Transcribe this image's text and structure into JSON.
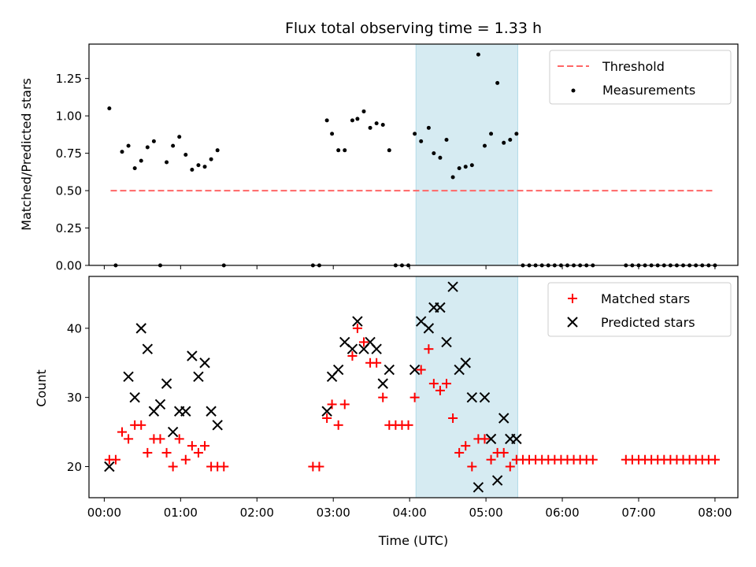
{
  "chart_data": [
    {
      "type": "scatter",
      "title": "Flux total observing time = 1.33 h",
      "xlabel": "",
      "ylabel": "Matched/Predicted stars",
      "xlim": [
        "23:48",
        "08:18"
      ],
      "ylim": [
        0,
        1.48
      ],
      "yticks": [
        "0.00",
        "0.25",
        "0.50",
        "0.75",
        "1.00",
        "1.25"
      ],
      "legend": "top-right",
      "shaded_span": [
        "04:05",
        "05:25"
      ],
      "span_color": "#add8e6",
      "series": [
        {
          "name": "Threshold",
          "style": "dashed-line",
          "color": "#ff6666",
          "x": [
            "00:05",
            "08:00"
          ],
          "y": [
            0.5,
            0.5
          ]
        },
        {
          "name": "Measurements",
          "style": "dots",
          "color": "#000000",
          "x": [
            "00:04",
            "00:09",
            "00:14",
            "00:19",
            "00:24",
            "00:29",
            "00:34",
            "00:39",
            "00:44",
            "00:49",
            "00:54",
            "00:59",
            "01:04",
            "01:09",
            "01:14",
            "01:19",
            "01:24",
            "01:29",
            "01:34",
            "02:44",
            "02:49",
            "02:55",
            "02:59",
            "03:04",
            "03:09",
            "03:15",
            "03:19",
            "03:24",
            "03:29",
            "03:34",
            "03:39",
            "03:44",
            "03:49",
            "03:54",
            "03:59",
            "04:04",
            "04:09",
            "04:15",
            "04:19",
            "04:24",
            "04:29",
            "04:34",
            "04:39",
            "04:44",
            "04:49",
            "04:54",
            "04:59",
            "05:04",
            "05:09",
            "05:14",
            "05:19",
            "05:24",
            "05:29",
            "05:34",
            "05:39",
            "05:44",
            "05:49",
            "05:54",
            "05:59",
            "06:04",
            "06:09",
            "06:14",
            "06:19",
            "06:24",
            "06:50",
            "06:55",
            "07:00",
            "07:05",
            "07:10",
            "07:15",
            "07:20",
            "07:25",
            "07:30",
            "07:35",
            "07:40",
            "07:45",
            "07:50",
            "07:55",
            "08:00"
          ],
          "y": [
            1.05,
            0.0,
            0.76,
            0.8,
            0.65,
            0.7,
            0.79,
            0.83,
            0.0,
            0.69,
            0.8,
            0.86,
            0.74,
            0.64,
            0.67,
            0.66,
            0.71,
            0.77,
            0.0,
            0.0,
            0.0,
            0.97,
            0.88,
            0.77,
            0.77,
            0.97,
            0.98,
            1.03,
            0.92,
            0.95,
            0.94,
            0.77,
            0.0,
            0.0,
            0.0,
            0.88,
            0.83,
            0.92,
            0.75,
            0.72,
            0.84,
            0.59,
            0.65,
            0.66,
            0.67,
            1.41,
            0.8,
            0.88,
            1.22,
            0.82,
            0.84,
            0.88,
            0.0,
            0.0,
            0.0,
            0.0,
            0.0,
            0.0,
            0.0,
            0.0,
            0.0,
            0.0,
            0.0,
            0.0,
            0.0,
            0.0,
            0.0,
            0.0,
            0.0,
            0.0,
            0.0,
            0.0,
            0.0,
            0.0,
            0.0,
            0.0,
            0.0,
            0.0,
            0.0
          ]
        }
      ]
    },
    {
      "type": "scatter",
      "title": "",
      "xlabel": "Time (UTC)",
      "ylabel": "Count",
      "xlim": [
        "23:48",
        "08:18"
      ],
      "ylim": [
        15.5,
        47.5
      ],
      "yticks": [
        "20",
        "30",
        "40"
      ],
      "xticks": [
        "00:00",
        "01:00",
        "02:00",
        "03:00",
        "04:00",
        "05:00",
        "06:00",
        "07:00",
        "08:00"
      ],
      "legend": "top-right",
      "shaded_span": [
        "04:05",
        "05:25"
      ],
      "span_color": "#add8e6",
      "series": [
        {
          "name": "Matched stars",
          "style": "plus",
          "color": "#ff0000",
          "x": [
            "00:04",
            "00:09",
            "00:14",
            "00:19",
            "00:24",
            "00:29",
            "00:34",
            "00:39",
            "00:44",
            "00:49",
            "00:54",
            "00:59",
            "01:04",
            "01:09",
            "01:14",
            "01:19",
            "01:24",
            "01:29",
            "01:34",
            "02:44",
            "02:49",
            "02:55",
            "02:59",
            "03:04",
            "03:09",
            "03:15",
            "03:19",
            "03:24",
            "03:29",
            "03:34",
            "03:39",
            "03:44",
            "03:49",
            "03:54",
            "03:59",
            "04:04",
            "04:09",
            "04:15",
            "04:19",
            "04:24",
            "04:29",
            "04:34",
            "04:39",
            "04:44",
            "04:49",
            "04:54",
            "04:59",
            "05:04",
            "05:09",
            "05:14",
            "05:19",
            "05:24",
            "05:29",
            "05:34",
            "05:39",
            "05:44",
            "05:49",
            "05:54",
            "05:59",
            "06:04",
            "06:09",
            "06:14",
            "06:19",
            "06:24",
            "06:50",
            "06:55",
            "07:00",
            "07:05",
            "07:10",
            "07:15",
            "07:20",
            "07:25",
            "07:30",
            "07:35",
            "07:40",
            "07:45",
            "07:50",
            "07:55",
            "08:00"
          ],
          "y": [
            21,
            21,
            25,
            24,
            26,
            26,
            22,
            24,
            24,
            22,
            20,
            24,
            21,
            23,
            22,
            23,
            20,
            20,
            20,
            20,
            20,
            27,
            29,
            26,
            29,
            36,
            40,
            38,
            35,
            35,
            30,
            26,
            26,
            26,
            26,
            30,
            34,
            37,
            32,
            31,
            32,
            27,
            22,
            23,
            20,
            24,
            24,
            21,
            22,
            22,
            20,
            21,
            21,
            21,
            21,
            21,
            21,
            21,
            21,
            21,
            21,
            21,
            21,
            21,
            21,
            21,
            21,
            21,
            21,
            21,
            21,
            21,
            21,
            21,
            21,
            21,
            21,
            21,
            21
          ]
        },
        {
          "name": "Predicted stars",
          "style": "x",
          "color": "#000000",
          "x": [
            "00:04",
            "00:19",
            "00:24",
            "00:29",
            "00:34",
            "00:39",
            "00:44",
            "00:49",
            "00:54",
            "00:59",
            "01:04",
            "01:09",
            "01:14",
            "01:19",
            "01:24",
            "01:29",
            "02:55",
            "02:59",
            "03:04",
            "03:09",
            "03:15",
            "03:19",
            "03:24",
            "03:29",
            "03:34",
            "03:39",
            "03:44",
            "04:04",
            "04:09",
            "04:15",
            "04:19",
            "04:24",
            "04:29",
            "04:34",
            "04:39",
            "04:44",
            "04:49",
            "04:54",
            "04:59",
            "05:04",
            "05:09",
            "05:14",
            "05:19",
            "05:24"
          ],
          "y": [
            20,
            33,
            30,
            40,
            37,
            28,
            29,
            32,
            25,
            28,
            28,
            36,
            33,
            35,
            28,
            26,
            28,
            33,
            34,
            38,
            37,
            41,
            37,
            38,
            37,
            32,
            34,
            34,
            41,
            40,
            43,
            43,
            38,
            46,
            34,
            35,
            30,
            17,
            30,
            24,
            18,
            27,
            24,
            24
          ]
        }
      ]
    }
  ]
}
